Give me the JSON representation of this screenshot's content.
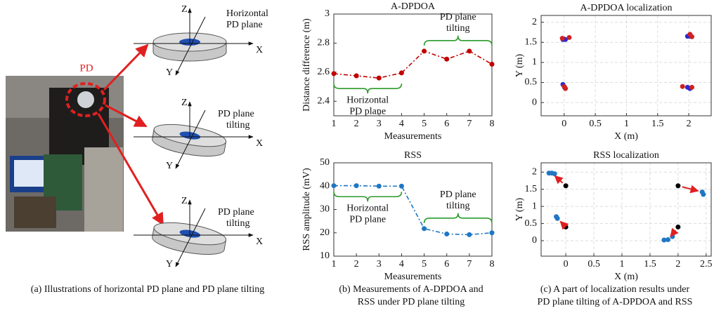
{
  "figure_a": {
    "pd_label": "PD",
    "axis_labels": {
      "z": "Z",
      "x": "X",
      "y": "Y"
    },
    "disc_labels": [
      [
        "Horizontal",
        "PD plane"
      ],
      [
        "PD plane",
        "tilting"
      ],
      [
        "PD plane",
        "tilting"
      ]
    ],
    "caption": "(a) Illustrations of horizontal PD plane and PD plane tilting"
  },
  "chart_data": [
    {
      "type": "line",
      "title": "A-DPDOA",
      "x_label": "Measurements",
      "y_label": "Distance difference (m)",
      "x": [
        1,
        2,
        3,
        4,
        5,
        6,
        7,
        8
      ],
      "xlim": [
        1,
        8
      ],
      "xticks": [
        1,
        2,
        3,
        4,
        5,
        6,
        7,
        8
      ],
      "ylim": [
        2.3,
        3
      ],
      "yticks": [
        2.4,
        2.6,
        2.8,
        3
      ],
      "grid": false,
      "series": [
        {
          "color": "#c00000",
          "values": [
            2.59,
            2.575,
            2.56,
            2.595,
            2.745,
            2.69,
            2.745,
            2.655
          ]
        }
      ],
      "annotations": [
        [
          "Horizontal",
          "PD plane"
        ],
        [
          "PD plane",
          "tilting"
        ]
      ]
    },
    {
      "type": "line",
      "title": "RSS",
      "x_label": "Measurements",
      "y_label": "RSS amplitude (mV)",
      "x": [
        1,
        2,
        3,
        4,
        5,
        6,
        7,
        8
      ],
      "xlim": [
        1,
        8
      ],
      "xticks": [
        1,
        2,
        3,
        4,
        5,
        6,
        7,
        8
      ],
      "ylim": [
        10,
        50
      ],
      "yticks": [
        10,
        20,
        30,
        40,
        50
      ],
      "grid": false,
      "series": [
        {
          "color": "#1f77c4",
          "values": [
            40.2,
            40.2,
            40,
            40,
            21.8,
            19.5,
            19.2,
            20
          ]
        }
      ],
      "annotations": [
        [
          "Horizontal",
          "PD plane"
        ],
        [
          "PD plane",
          "tilting"
        ]
      ]
    },
    {
      "type": "scatter",
      "title": "A-DPDOA localization",
      "x_label": "X (m)",
      "y_label": "Y (m)",
      "xlim": [
        -0.37,
        2.36
      ],
      "xticks": [
        0,
        0.5,
        1,
        1.5,
        2
      ],
      "ylim": [
        -0.33,
        2.17
      ],
      "yticks": [
        0,
        0.5,
        1,
        1.5,
        2
      ],
      "grid": true,
      "series": [
        {
          "color": "#2b2bd0",
          "x": [
            0,
            -0.02,
            0.02,
            1.98,
            2.02,
            -0.02,
            0.01,
            1.98,
            2.02
          ],
          "values": [
            1.58,
            1.57,
            1.57,
            1.65,
            1.65,
            0.45,
            0.37,
            0.38,
            0.35
          ]
        },
        {
          "color": "#d02020",
          "x": [
            0.08,
            -0.03,
            2.02,
            2.05,
            0,
            0.02,
            1.9,
            2.05
          ],
          "values": [
            1.62,
            1.6,
            1.7,
            1.64,
            0.4,
            0.35,
            0.4,
            0.38
          ]
        }
      ]
    },
    {
      "type": "scatter",
      "title": "RSS  localization",
      "x_label": "X (m)",
      "y_label": "Y (m)",
      "xlim": [
        -0.44,
        2.59
      ],
      "xticks": [
        0,
        0.5,
        1,
        1.5,
        2,
        2.5
      ],
      "ylim": [
        -0.45,
        2.27
      ],
      "yticks": [
        0,
        0.5,
        1,
        1.5,
        2
      ],
      "grid": true,
      "series": [
        {
          "color": "#000000",
          "x": [
            0,
            2,
            0,
            2
          ],
          "values": [
            1.6,
            1.6,
            0.4,
            0.4
          ]
        },
        {
          "color": "#1f77c4",
          "x": [
            -0.3,
            -0.2,
            -0.25,
            2.45,
            2.43,
            -0.15,
            -0.17,
            1.75,
            1.82,
            1.9
          ],
          "values": [
            1.97,
            1.95,
            1.97,
            1.35,
            1.42,
            0.65,
            0.7,
            0.02,
            0.03,
            0.12
          ]
        }
      ]
    }
  ],
  "captions": {
    "b": [
      "(b) Measurements of A-DPDOA and",
      "RSS under PD plane tilting"
    ],
    "c": [
      "(c) A part of localization results under",
      "PD plane tilting of A-DPDOA and RSS"
    ]
  }
}
